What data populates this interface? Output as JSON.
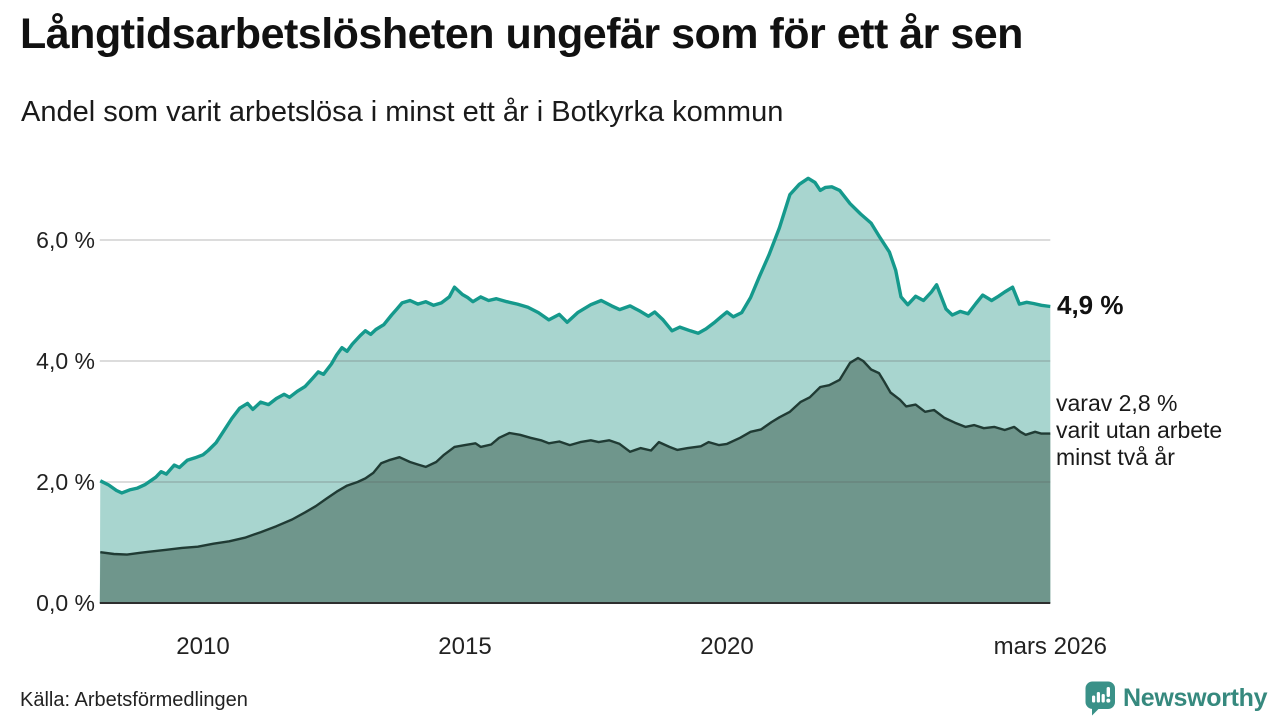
{
  "header": {
    "title": "Långtidsarbetslösheten ungefär som för ett år sen",
    "subtitle": "Andel som varit arbetslösa i minst ett år i Botkyrka kommun"
  },
  "annotations": {
    "latest_total": "4,9 %",
    "secondary": [
      "varav 2,8 %",
      "varit utan arbete",
      "minst två år"
    ]
  },
  "footer": {
    "source": "Källa: Arbetsförmedlingen",
    "brand": "Newsworthy"
  },
  "colors": {
    "accent_teal": "#15998c",
    "fill_light": "#a8d5cf",
    "fill_dark": "#6f968c",
    "line_dark": "#203b34",
    "brand_teal": "#3a9188",
    "gridline": "rgba(90,90,90,0.28)",
    "axis_line": "#2e2e2e"
  },
  "chart_data": {
    "type": "area",
    "title": "Långtidsarbetslösheten ungefär som för ett år sen",
    "subtitle": "Andel som varit arbetslösa i minst ett år i Botkyrka kommun",
    "unit": "%",
    "grid": true,
    "legend_position": "right-edge-annotations",
    "xlim": [
      2008.03,
      2026.17
    ],
    "ylim": [
      0,
      7.2
    ],
    "yticks": [
      {
        "v": 0,
        "label": "0,0 %"
      },
      {
        "v": 2,
        "label": "2,0 %"
      },
      {
        "v": 4,
        "label": "4,0 %"
      },
      {
        "v": 6,
        "label": "6,0 %"
      }
    ],
    "xticks": [
      {
        "t": 2010,
        "label": "2010"
      },
      {
        "t": 2015,
        "label": "2015"
      },
      {
        "t": 2020,
        "label": "2020"
      },
      {
        "t": 2026.17,
        "label": "mars 2026"
      }
    ],
    "series": [
      {
        "name": "Arbetslösa minst ett år",
        "latest_value": 4.9,
        "color": "#15998c",
        "fill": "#a8d5cf",
        "points": [
          [
            2008.04,
            2.02
          ],
          [
            2008.2,
            1.95
          ],
          [
            2008.35,
            1.86
          ],
          [
            2008.45,
            1.82
          ],
          [
            2008.6,
            1.87
          ],
          [
            2008.75,
            1.9
          ],
          [
            2008.9,
            1.96
          ],
          [
            2009.0,
            2.02
          ],
          [
            2009.1,
            2.08
          ],
          [
            2009.2,
            2.17
          ],
          [
            2009.3,
            2.13
          ],
          [
            2009.45,
            2.28
          ],
          [
            2009.55,
            2.24
          ],
          [
            2009.7,
            2.36
          ],
          [
            2009.85,
            2.4
          ],
          [
            2010.0,
            2.45
          ],
          [
            2010.1,
            2.52
          ],
          [
            2010.25,
            2.65
          ],
          [
            2010.4,
            2.85
          ],
          [
            2010.55,
            3.05
          ],
          [
            2010.7,
            3.22
          ],
          [
            2010.85,
            3.3
          ],
          [
            2010.95,
            3.2
          ],
          [
            2011.1,
            3.32
          ],
          [
            2011.25,
            3.28
          ],
          [
            2011.4,
            3.38
          ],
          [
            2011.55,
            3.45
          ],
          [
            2011.65,
            3.4
          ],
          [
            2011.8,
            3.5
          ],
          [
            2011.95,
            3.58
          ],
          [
            2012.1,
            3.72
          ],
          [
            2012.2,
            3.82
          ],
          [
            2012.3,
            3.78
          ],
          [
            2012.45,
            3.95
          ],
          [
            2012.55,
            4.1
          ],
          [
            2012.65,
            4.22
          ],
          [
            2012.75,
            4.16
          ],
          [
            2012.85,
            4.28
          ],
          [
            2013.0,
            4.42
          ],
          [
            2013.1,
            4.5
          ],
          [
            2013.2,
            4.44
          ],
          [
            2013.3,
            4.52
          ],
          [
            2013.45,
            4.6
          ],
          [
            2013.6,
            4.76
          ],
          [
            2013.7,
            4.86
          ],
          [
            2013.8,
            4.96
          ],
          [
            2013.95,
            5.0
          ],
          [
            2014.1,
            4.94
          ],
          [
            2014.25,
            4.98
          ],
          [
            2014.4,
            4.92
          ],
          [
            2014.55,
            4.96
          ],
          [
            2014.7,
            5.06
          ],
          [
            2014.8,
            5.22
          ],
          [
            2014.95,
            5.1
          ],
          [
            2015.05,
            5.05
          ],
          [
            2015.15,
            4.98
          ],
          [
            2015.3,
            5.06
          ],
          [
            2015.45,
            5.0
          ],
          [
            2015.6,
            5.03
          ],
          [
            2015.8,
            4.98
          ],
          [
            2016.0,
            4.94
          ],
          [
            2016.2,
            4.89
          ],
          [
            2016.4,
            4.8
          ],
          [
            2016.6,
            4.68
          ],
          [
            2016.8,
            4.77
          ],
          [
            2016.95,
            4.64
          ],
          [
            2017.15,
            4.8
          ],
          [
            2017.4,
            4.93
          ],
          [
            2017.6,
            5.0
          ],
          [
            2017.8,
            4.91
          ],
          [
            2017.95,
            4.85
          ],
          [
            2018.15,
            4.91
          ],
          [
            2018.35,
            4.82
          ],
          [
            2018.5,
            4.74
          ],
          [
            2018.62,
            4.81
          ],
          [
            2018.78,
            4.68
          ],
          [
            2018.95,
            4.5
          ],
          [
            2019.1,
            4.56
          ],
          [
            2019.3,
            4.5
          ],
          [
            2019.45,
            4.46
          ],
          [
            2019.6,
            4.53
          ],
          [
            2019.75,
            4.63
          ],
          [
            2019.9,
            4.74
          ],
          [
            2020.0,
            4.81
          ],
          [
            2020.12,
            4.73
          ],
          [
            2020.28,
            4.8
          ],
          [
            2020.45,
            5.05
          ],
          [
            2020.62,
            5.4
          ],
          [
            2020.8,
            5.75
          ],
          [
            2021.0,
            6.2
          ],
          [
            2021.2,
            6.75
          ],
          [
            2021.38,
            6.92
          ],
          [
            2021.55,
            7.02
          ],
          [
            2021.68,
            6.95
          ],
          [
            2021.78,
            6.82
          ],
          [
            2021.88,
            6.87
          ],
          [
            2022.0,
            6.88
          ],
          [
            2022.15,
            6.82
          ],
          [
            2022.35,
            6.6
          ],
          [
            2022.55,
            6.43
          ],
          [
            2022.75,
            6.28
          ],
          [
            2022.92,
            6.04
          ],
          [
            2023.1,
            5.8
          ],
          [
            2023.22,
            5.5
          ],
          [
            2023.32,
            5.06
          ],
          [
            2023.45,
            4.93
          ],
          [
            2023.6,
            5.07
          ],
          [
            2023.75,
            5.0
          ],
          [
            2023.9,
            5.14
          ],
          [
            2024.0,
            5.26
          ],
          [
            2024.18,
            4.86
          ],
          [
            2024.3,
            4.76
          ],
          [
            2024.45,
            4.82
          ],
          [
            2024.6,
            4.78
          ],
          [
            2024.75,
            4.95
          ],
          [
            2024.88,
            5.09
          ],
          [
            2025.05,
            5.0
          ],
          [
            2025.18,
            5.07
          ],
          [
            2025.3,
            5.14
          ],
          [
            2025.45,
            5.22
          ],
          [
            2025.58,
            4.94
          ],
          [
            2025.72,
            4.97
          ],
          [
            2025.85,
            4.95
          ],
          [
            2026.0,
            4.92
          ],
          [
            2026.17,
            4.9
          ]
        ]
      },
      {
        "name": "varav arbetslösa minst två år",
        "latest_value": 2.8,
        "color": "#203b34",
        "fill": "#6f968c",
        "points": [
          [
            2008.04,
            0.84
          ],
          [
            2008.3,
            0.81
          ],
          [
            2008.55,
            0.8
          ],
          [
            2008.8,
            0.83
          ],
          [
            2009.0,
            0.85
          ],
          [
            2009.3,
            0.88
          ],
          [
            2009.6,
            0.91
          ],
          [
            2009.9,
            0.93
          ],
          [
            2010.2,
            0.98
          ],
          [
            2010.5,
            1.02
          ],
          [
            2010.8,
            1.08
          ],
          [
            2011.1,
            1.17
          ],
          [
            2011.4,
            1.27
          ],
          [
            2011.7,
            1.38
          ],
          [
            2011.95,
            1.5
          ],
          [
            2012.15,
            1.6
          ],
          [
            2012.35,
            1.72
          ],
          [
            2012.55,
            1.84
          ],
          [
            2012.75,
            1.94
          ],
          [
            2012.95,
            2.0
          ],
          [
            2013.1,
            2.06
          ],
          [
            2013.25,
            2.15
          ],
          [
            2013.4,
            2.31
          ],
          [
            2013.55,
            2.36
          ],
          [
            2013.75,
            2.41
          ],
          [
            2013.95,
            2.33
          ],
          [
            2014.1,
            2.29
          ],
          [
            2014.25,
            2.25
          ],
          [
            2014.45,
            2.33
          ],
          [
            2014.6,
            2.45
          ],
          [
            2014.8,
            2.58
          ],
          [
            2015.0,
            2.61
          ],
          [
            2015.2,
            2.64
          ],
          [
            2015.3,
            2.58
          ],
          [
            2015.5,
            2.62
          ],
          [
            2015.65,
            2.73
          ],
          [
            2015.85,
            2.81
          ],
          [
            2016.05,
            2.78
          ],
          [
            2016.25,
            2.73
          ],
          [
            2016.45,
            2.69
          ],
          [
            2016.6,
            2.64
          ],
          [
            2016.8,
            2.67
          ],
          [
            2017.0,
            2.61
          ],
          [
            2017.2,
            2.66
          ],
          [
            2017.4,
            2.69
          ],
          [
            2017.55,
            2.66
          ],
          [
            2017.75,
            2.69
          ],
          [
            2017.95,
            2.63
          ],
          [
            2018.15,
            2.5
          ],
          [
            2018.35,
            2.56
          ],
          [
            2018.55,
            2.52
          ],
          [
            2018.7,
            2.66
          ],
          [
            2018.9,
            2.58
          ],
          [
            2019.05,
            2.53
          ],
          [
            2019.25,
            2.56
          ],
          [
            2019.5,
            2.59
          ],
          [
            2019.65,
            2.66
          ],
          [
            2019.85,
            2.61
          ],
          [
            2020.0,
            2.63
          ],
          [
            2020.25,
            2.73
          ],
          [
            2020.45,
            2.83
          ],
          [
            2020.65,
            2.87
          ],
          [
            2020.85,
            2.99
          ],
          [
            2021.0,
            3.07
          ],
          [
            2021.2,
            3.16
          ],
          [
            2021.4,
            3.32
          ],
          [
            2021.58,
            3.4
          ],
          [
            2021.78,
            3.57
          ],
          [
            2021.95,
            3.6
          ],
          [
            2022.15,
            3.69
          ],
          [
            2022.35,
            3.97
          ],
          [
            2022.5,
            4.05
          ],
          [
            2022.6,
            4.0
          ],
          [
            2022.75,
            3.86
          ],
          [
            2022.9,
            3.8
          ],
          [
            2023.0,
            3.66
          ],
          [
            2023.12,
            3.48
          ],
          [
            2023.3,
            3.36
          ],
          [
            2023.42,
            3.25
          ],
          [
            2023.6,
            3.28
          ],
          [
            2023.78,
            3.16
          ],
          [
            2023.95,
            3.19
          ],
          [
            2024.15,
            3.06
          ],
          [
            2024.35,
            2.98
          ],
          [
            2024.55,
            2.91
          ],
          [
            2024.72,
            2.94
          ],
          [
            2024.9,
            2.89
          ],
          [
            2025.1,
            2.91
          ],
          [
            2025.3,
            2.86
          ],
          [
            2025.48,
            2.91
          ],
          [
            2025.6,
            2.83
          ],
          [
            2025.7,
            2.78
          ],
          [
            2025.88,
            2.83
          ],
          [
            2026.0,
            2.8
          ],
          [
            2026.17,
            2.8
          ]
        ]
      }
    ]
  }
}
